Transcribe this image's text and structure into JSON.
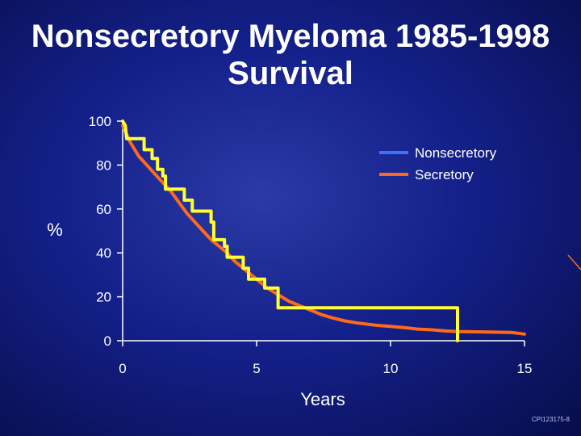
{
  "title_line1": "Nonsecretory Myeloma 1985-1998",
  "title_line2": "Survival",
  "footnote": "CPI123175-8",
  "colors": {
    "background": "#14208a",
    "axis": "#ffffff",
    "nonsecretory_legend": "#3f6fff",
    "nonsecretory_line": "#ffff33",
    "secretory": "#ff6a1a"
  },
  "chart_data": {
    "type": "line",
    "title": "Survival",
    "xlabel": "Years",
    "ylabel": "%",
    "xlim": [
      0,
      15
    ],
    "ylim": [
      0,
      100
    ],
    "xticks": [
      0,
      5,
      10,
      15
    ],
    "yticks": [
      0,
      20,
      40,
      60,
      80,
      100
    ],
    "grid": false,
    "legend_position": "top-right",
    "series": [
      {
        "name": "Nonsecretory",
        "step": true,
        "points": [
          [
            0,
            100
          ],
          [
            0.1,
            98
          ],
          [
            0.15,
            92
          ],
          [
            0.8,
            92
          ],
          [
            0.8,
            87
          ],
          [
            1.1,
            87
          ],
          [
            1.1,
            83
          ],
          [
            1.3,
            83
          ],
          [
            1.3,
            78
          ],
          [
            1.5,
            78
          ],
          [
            1.5,
            75
          ],
          [
            1.6,
            75
          ],
          [
            1.6,
            69
          ],
          [
            2.3,
            69
          ],
          [
            2.3,
            64
          ],
          [
            2.6,
            64
          ],
          [
            2.6,
            59
          ],
          [
            3.3,
            59
          ],
          [
            3.3,
            54
          ],
          [
            3.4,
            54
          ],
          [
            3.4,
            46
          ],
          [
            3.8,
            46
          ],
          [
            3.8,
            43
          ],
          [
            3.9,
            43
          ],
          [
            3.9,
            38
          ],
          [
            4.5,
            38
          ],
          [
            4.5,
            33
          ],
          [
            4.7,
            33
          ],
          [
            4.7,
            28
          ],
          [
            5.3,
            28
          ],
          [
            5.3,
            24
          ],
          [
            5.8,
            24
          ],
          [
            5.8,
            15
          ],
          [
            12.5,
            15
          ],
          [
            12.5,
            0
          ]
        ]
      },
      {
        "name": "Secretory",
        "step": false,
        "points": [
          [
            0,
            98
          ],
          [
            0.3,
            90
          ],
          [
            0.6,
            84
          ],
          [
            0.9,
            80
          ],
          [
            1.2,
            76
          ],
          [
            1.5,
            72
          ],
          [
            1.8,
            68
          ],
          [
            2.1,
            63
          ],
          [
            2.4,
            58
          ],
          [
            2.7,
            54
          ],
          [
            3.0,
            50
          ],
          [
            3.3,
            46
          ],
          [
            3.6,
            43
          ],
          [
            3.9,
            40
          ],
          [
            4.2,
            36
          ],
          [
            4.5,
            33
          ],
          [
            4.8,
            30
          ],
          [
            5.1,
            27
          ],
          [
            5.4,
            24
          ],
          [
            5.8,
            21
          ],
          [
            6.2,
            18
          ],
          [
            6.6,
            16
          ],
          [
            7.0,
            14
          ],
          [
            7.4,
            12
          ],
          [
            7.8,
            10.5
          ],
          [
            8.3,
            9
          ],
          [
            8.8,
            8
          ],
          [
            9.5,
            7
          ],
          [
            10.0,
            6.5
          ],
          [
            10.5,
            6
          ],
          [
            11.0,
            5.3
          ],
          [
            11.5,
            5
          ],
          [
            12.0,
            4.5
          ],
          [
            12.5,
            4.2
          ],
          [
            13.5,
            4
          ],
          [
            14.5,
            3.8
          ],
          [
            15,
            3
          ]
        ]
      }
    ]
  }
}
